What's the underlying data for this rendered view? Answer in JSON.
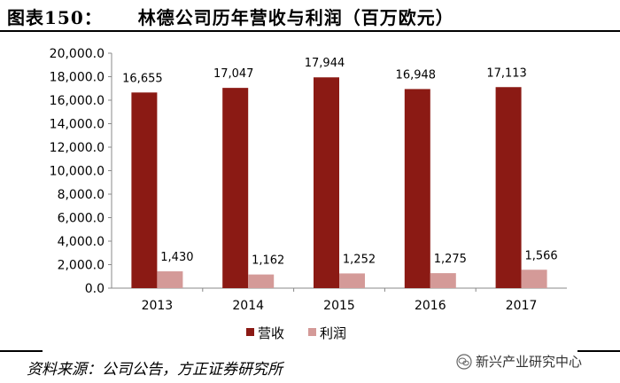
{
  "figure": {
    "label": "图表150：",
    "title": "林德公司历年营收与利润（百万欧元）"
  },
  "source": "资料来源：公司公告，方正证券研究所",
  "watermark": {
    "text": "新兴产业研究中心",
    "icon": "wechat-icon"
  },
  "chart_data": {
    "type": "bar",
    "categories": [
      "2013",
      "2014",
      "2015",
      "2016",
      "2017"
    ],
    "series": [
      {
        "name": "营收",
        "values": [
          16655,
          17047,
          17944,
          16948,
          17113
        ],
        "labels": [
          "16,655",
          "17,047",
          "17,944",
          "16,948",
          "17,113"
        ],
        "color": "#8B1A14"
      },
      {
        "name": "利润",
        "values": [
          1430,
          1162,
          1252,
          1275,
          1566
        ],
        "labels": [
          "1,430",
          "1,162",
          "1,252",
          "1,275",
          "1,566"
        ],
        "color": "#D49A98"
      }
    ],
    "yticks": [
      "0.0",
      "2,000.0",
      "4,000.0",
      "6,000.0",
      "8,000.0",
      "10,000.0",
      "12,000.0",
      "14,000.0",
      "16,000.0",
      "18,000.0",
      "20,000.0"
    ],
    "ylim": [
      0,
      20000
    ],
    "grid": false,
    "legend_position": "bottom"
  }
}
